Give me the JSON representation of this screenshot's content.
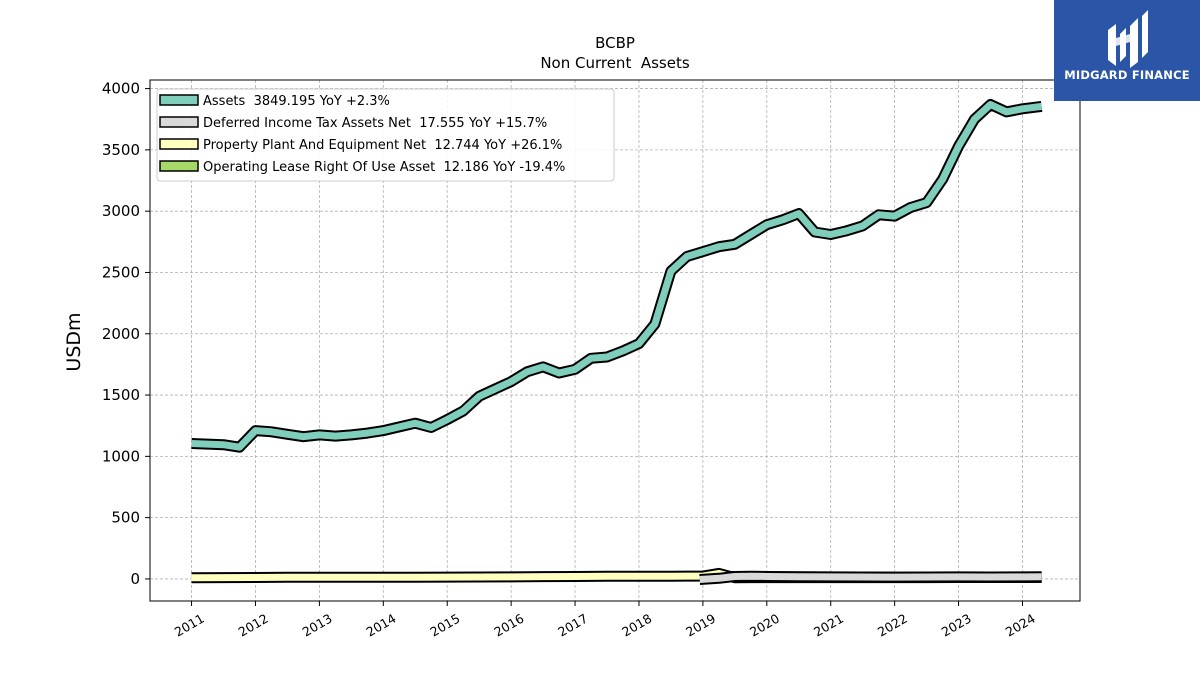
{
  "brand": {
    "name": "MIDGARD FINANCE",
    "bg_color": "#2b56a8",
    "icon": "midgard-logo-icon"
  },
  "chart_data": {
    "type": "line",
    "title": "BCBP",
    "subtitle": "Non Current  Assets",
    "ylabel": "USDm",
    "xlabel": "",
    "ylim": [
      -180,
      4070
    ],
    "xlim": [
      2010.35,
      2024.9
    ],
    "yticks": [
      0,
      500,
      1000,
      1500,
      2000,
      2500,
      3000,
      3500,
      4000
    ],
    "xticks": [
      "2011",
      "2012",
      "2013",
      "2014",
      "2015",
      "2016",
      "2017",
      "2018",
      "2019",
      "2020",
      "2021",
      "2022",
      "2023",
      "2024"
    ],
    "grid": true,
    "legend_position": "top-left",
    "series": [
      {
        "name": "Assets",
        "legend": "Assets  3849.195 YoY +2.3%",
        "color": "#7fcdbb",
        "x": [
          2011.0,
          2011.25,
          2011.5,
          2011.75,
          2012.0,
          2012.25,
          2012.5,
          2012.75,
          2013.0,
          2013.25,
          2013.5,
          2013.75,
          2014.0,
          2014.25,
          2014.5,
          2014.75,
          2015.0,
          2015.25,
          2015.5,
          2015.75,
          2016.0,
          2016.25,
          2016.5,
          2016.75,
          2017.0,
          2017.25,
          2017.5,
          2017.75,
          2018.0,
          2018.25,
          2018.5,
          2018.75,
          2019.0,
          2019.25,
          2019.5,
          2019.75,
          2020.0,
          2020.25,
          2020.5,
          2020.75,
          2021.0,
          2021.25,
          2021.5,
          2021.75,
          2022.0,
          2022.25,
          2022.5,
          2022.75,
          2023.0,
          2023.25,
          2023.5,
          2023.75,
          2024.0,
          2024.3
        ],
        "values": [
          1105,
          1100,
          1095,
          1075,
          1210,
          1200,
          1180,
          1160,
          1175,
          1165,
          1175,
          1190,
          1210,
          1240,
          1270,
          1235,
          1300,
          1370,
          1490,
          1550,
          1610,
          1690,
          1730,
          1680,
          1710,
          1800,
          1810,
          1860,
          1920,
          2080,
          2510,
          2630,
          2670,
          2710,
          2730,
          2810,
          2890,
          2930,
          2980,
          2830,
          2810,
          2840,
          2880,
          2970,
          2960,
          3030,
          3070,
          3260,
          3530,
          3750,
          3870,
          3810,
          3835,
          3855
        ]
      },
      {
        "name": "Deferred Income Tax Assets Net",
        "legend": "Deferred Income Tax Assets Net  17.555 YoY +15.7%",
        "color": "#d9d9d9",
        "x": [
          2018.95,
          2019.25,
          2019.5,
          2019.75,
          2020.0,
          2020.5,
          2021.0,
          2021.5,
          2022.0,
          2022.5,
          2023.0,
          2023.5,
          2024.0,
          2024.3
        ],
        "values": [
          -5,
          5,
          20,
          22,
          20,
          18,
          17,
          16,
          15,
          16,
          17,
          16,
          17,
          17.5
        ]
      },
      {
        "name": "Property Plant And Equipment Net",
        "legend": "Property Plant And Equipment Net  12.744 YoY +26.1%",
        "color": "#ffffbf",
        "x": [
          2011.0,
          2011.5,
          2012.0,
          2012.5,
          2013.0,
          2013.5,
          2014.0,
          2014.5,
          2015.0,
          2015.5,
          2016.0,
          2016.5,
          2017.0,
          2017.5,
          2018.0,
          2018.5,
          2018.75,
          2019.0,
          2019.25,
          2019.5,
          2019.75,
          2020.0,
          2020.5,
          2021.0,
          2021.5,
          2022.0,
          2022.5,
          2023.0,
          2023.5,
          2024.0,
          2024.3
        ],
        "values": [
          10,
          11,
          12,
          13,
          13,
          13,
          14,
          14,
          15,
          16,
          17,
          19,
          20,
          22,
          22,
          22,
          23,
          23,
          45,
          10,
          11,
          11,
          11,
          11,
          11,
          11,
          11,
          12,
          12,
          12,
          12.7
        ]
      },
      {
        "name": "Operating Lease Right Of Use Asset",
        "legend": "Operating Lease Right Of Use Asset  12.186 YoY -19.4%",
        "color": "#a6d96a",
        "x": [
          2019.45,
          2019.75,
          2020.0,
          2020.5,
          2021.0,
          2021.5,
          2022.0,
          2022.5,
          2023.0,
          2023.5,
          2024.0,
          2024.3
        ],
        "values": [
          20,
          19,
          18,
          17,
          16,
          15,
          14,
          14,
          13,
          13,
          12.5,
          12.2
        ]
      }
    ]
  }
}
